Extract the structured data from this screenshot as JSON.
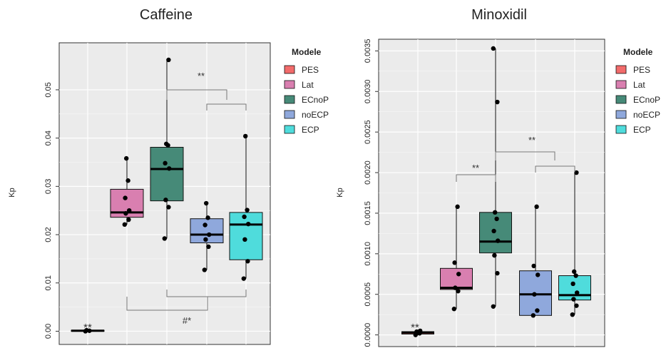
{
  "legend": {
    "title": "Modele",
    "items": [
      {
        "label": "PES",
        "color": "#f26b6b"
      },
      {
        "label": "Lat",
        "color": "#d97fb0"
      },
      {
        "label": "ECnoP",
        "color": "#468a78"
      },
      {
        "label": "noECP",
        "color": "#8fa8dc"
      },
      {
        "label": "ECP",
        "color": "#4fdcdc"
      }
    ]
  },
  "chart_data": [
    {
      "type": "boxplot",
      "title": "Caffeine",
      "ylabel": "Kp",
      "ylim": [
        -0.002,
        0.059
      ],
      "yticks": [
        0.0,
        0.01,
        0.02,
        0.03,
        0.04,
        0.05
      ],
      "ytick_labels": [
        "0.00",
        "0.01",
        "0.02",
        "0.03",
        "0.04",
        "0.05"
      ],
      "categories": [
        "PES",
        "Lat",
        "ECnoP",
        "noECP",
        "ECP"
      ],
      "boxes": [
        {
          "name": "PES",
          "q1": 0.0,
          "median": 0.0001,
          "q3": 0.0002,
          "whisker_low": 0.0,
          "whisker_high": 0.0002,
          "points": [
            0.0,
            0.0001,
            0.0002
          ]
        },
        {
          "name": "Lat",
          "q1": 0.0236,
          "median": 0.0246,
          "q3": 0.0294,
          "whisker_low": 0.0221,
          "whisker_high": 0.0358,
          "points": [
            0.0221,
            0.0231,
            0.0244,
            0.025,
            0.0276,
            0.0312,
            0.0358
          ]
        },
        {
          "name": "ECnoP",
          "q1": 0.027,
          "median": 0.0336,
          "q3": 0.0381,
          "whisker_low": 0.0192,
          "whisker_high": 0.0562,
          "points": [
            0.0192,
            0.0257,
            0.0272,
            0.0337,
            0.0348,
            0.0385,
            0.0388,
            0.0562
          ]
        },
        {
          "name": "noECP",
          "q1": 0.0183,
          "median": 0.02,
          "q3": 0.0233,
          "whisker_low": 0.0127,
          "whisker_high": 0.0265,
          "points": [
            0.0127,
            0.0175,
            0.019,
            0.02,
            0.022,
            0.0235,
            0.0265
          ]
        },
        {
          "name": "ECP",
          "q1": 0.0148,
          "median": 0.0221,
          "q3": 0.0246,
          "whisker_low": 0.0109,
          "whisker_high": 0.0404,
          "points": [
            0.0109,
            0.0145,
            0.019,
            0.0222,
            0.0237,
            0.0251,
            0.0404
          ]
        }
      ],
      "annotations": [
        {
          "text": "**",
          "position": "above PES"
        },
        {
          "text": "**",
          "position": "ECnoP vs noECP/ECP"
        },
        {
          "text": "#*",
          "position": "Lat vs noECP/ECP"
        }
      ],
      "grid": true
    },
    {
      "type": "boxplot",
      "title": "Minoxidil",
      "ylabel": "Kp",
      "ylim": [
        -0.0001,
        0.0036
      ],
      "yticks": [
        0.0,
        0.0005,
        0.001,
        0.0015,
        0.002,
        0.0025,
        0.003,
        0.0035
      ],
      "ytick_labels": [
        "0.0000",
        "0.0005",
        "0.0010",
        "0.0015",
        "0.0020",
        "0.0025",
        "0.0030",
        "0.0035"
      ],
      "categories": [
        "PES",
        "Lat",
        "ECnoP",
        "noECP",
        "ECP"
      ],
      "boxes": [
        {
          "name": "PES",
          "q1": 1e-05,
          "median": 3e-05,
          "q3": 4e-05,
          "whisker_low": 0.0,
          "whisker_high": 5e-05,
          "points": [
            0.0,
            2e-05,
            4e-05,
            5e-05
          ]
        },
        {
          "name": "Lat",
          "q1": 0.00056,
          "median": 0.00058,
          "q3": 0.00082,
          "whisker_low": 0.00032,
          "whisker_high": 0.00158,
          "points": [
            0.00032,
            0.00054,
            0.00058,
            0.00075,
            0.00089,
            0.00158
          ]
        },
        {
          "name": "ECnoP",
          "q1": 0.00101,
          "median": 0.00115,
          "q3": 0.00151,
          "whisker_low": 0.00035,
          "whisker_high": 0.00353,
          "points": [
            0.00035,
            0.00076,
            0.00098,
            0.00116,
            0.00128,
            0.00143,
            0.00151,
            0.00287,
            0.00353
          ]
        },
        {
          "name": "noECP",
          "q1": 0.00024,
          "median": 0.0005,
          "q3": 0.00079,
          "whisker_low": 0.00024,
          "whisker_high": 0.00158,
          "points": [
            0.00024,
            0.0003,
            0.0005,
            0.00074,
            0.00085,
            0.00158
          ]
        },
        {
          "name": "ECP",
          "q1": 0.00043,
          "median": 0.00049,
          "q3": 0.00073,
          "whisker_low": 0.00025,
          "whisker_high": 0.002,
          "points": [
            0.00025,
            0.00036,
            0.00044,
            0.00052,
            0.00063,
            0.00073,
            0.00078,
            0.002
          ]
        }
      ],
      "annotations": [
        {
          "text": "**",
          "position": "above PES"
        },
        {
          "text": "**",
          "position": "Lat vs ECnoP"
        },
        {
          "text": "**",
          "position": "ECnoP vs noECP/ECP"
        }
      ],
      "grid": true
    }
  ]
}
